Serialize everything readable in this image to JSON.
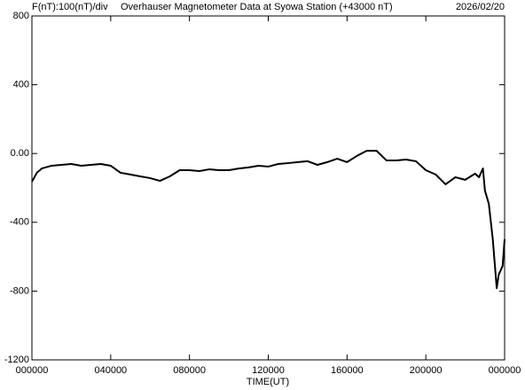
{
  "chart_data": {
    "type": "line",
    "scale_note": "F(nT):100(nT)/div",
    "title": "Overhauser Magnetometer Data at Syowa Station (+43000 nT)",
    "date": "2026/02/20",
    "x_label": "TIME(UT)",
    "color": "#000000",
    "x": [
      0,
      0.25,
      0.5,
      1,
      1.5,
      2,
      2.5,
      3,
      3.5,
      4,
      4.5,
      5,
      5.5,
      6,
      6.5,
      7,
      7.5,
      8,
      8.5,
      9,
      9.5,
      10,
      10.5,
      11,
      11.5,
      12,
      12.5,
      13,
      13.5,
      14,
      14.5,
      15,
      15.5,
      16,
      16.5,
      17,
      17.5,
      18,
      18.5,
      19,
      19.5,
      20,
      20.5,
      21,
      21.5,
      22,
      22.5,
      22.7,
      22.9,
      23.0,
      23.2,
      23.4,
      23.6,
      23.7,
      23.9,
      24
    ],
    "values": [
      -164,
      -112,
      -87,
      -71,
      -66,
      -61,
      -71,
      -66,
      -61,
      -71,
      -112,
      -122,
      -133,
      -143,
      -159,
      -133,
      -97,
      -97,
      -102,
      -92,
      -97,
      -97,
      -87,
      -81,
      -71,
      -76,
      -61,
      -56,
      -50,
      -45,
      -66,
      -50,
      -30,
      -50,
      -14,
      16,
      16,
      -40,
      -40,
      -35,
      -45,
      -97,
      -122,
      -179,
      -138,
      -153,
      -117,
      -138,
      -87,
      -215,
      -293,
      -499,
      -783,
      -705,
      -654,
      -499
    ],
    "xlim": [
      0,
      24
    ],
    "xticks": [
      {
        "value": 0,
        "label": "000000"
      },
      {
        "value": 4,
        "label": "040000"
      },
      {
        "value": 8,
        "label": "080000"
      },
      {
        "value": 12,
        "label": "120000"
      },
      {
        "value": 16,
        "label": "160000"
      },
      {
        "value": 20,
        "label": "200000"
      },
      {
        "value": 24,
        "label": "000000"
      }
    ],
    "ylim": [
      -1200,
      800
    ],
    "yticks": [
      -1200,
      -800,
      -400,
      {
        "value": 0,
        "label": "0.00"
      },
      400,
      800
    ]
  }
}
